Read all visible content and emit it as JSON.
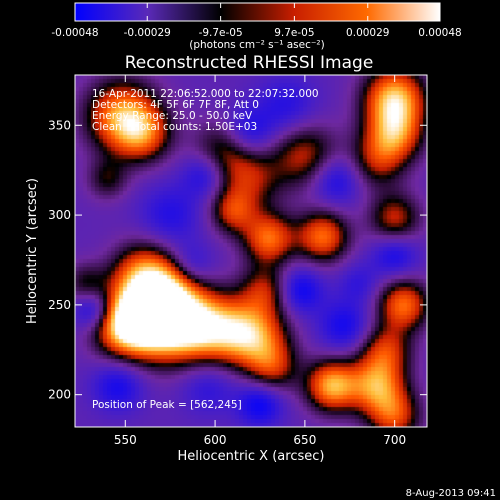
{
  "chart_data": {
    "type": "heatmap",
    "title": "Reconstructed RHESSI Image",
    "xlabel": "Heliocentric X (arcsec)",
    "ylabel": "Heliocentric Y (arcsec)",
    "xlim": [
      522,
      718
    ],
    "ylim": [
      182,
      378
    ],
    "x_ticks": [
      550,
      600,
      650,
      700
    ],
    "y_ticks": [
      200,
      250,
      300,
      350
    ],
    "colorbar": {
      "range": [
        -0.00048,
        0.00048
      ],
      "tick_values": [
        -0.00048,
        -0.00029,
        -9.7e-05,
        9.7e-05,
        0.00029,
        0.00048
      ],
      "tick_labels": [
        "-0.00048",
        "-0.00029",
        "-9.7e-05",
        "9.7e-05",
        "0.00029",
        "0.00048"
      ],
      "unit_label": "(photons cm⁻² s⁻¹ asec⁻²)",
      "colors": [
        "#0000ff",
        "#5a2ab8",
        "#000000",
        "#c81e00",
        "#ff6a00",
        "#ffffff"
      ]
    },
    "annotations": [
      "16-Apr-2011 22:06:52.000 to 22:07:32.000",
      "Detectors: 4F 5F 6F 7F 8F, Att 0",
      "Energy Range: 25.0 - 50.0 keV",
      "Clean    Total counts: 1.50E+03"
    ],
    "peak_label": "Position of Peak = [562,245]",
    "peak": [
      562,
      245
    ],
    "blobs": [
      {
        "x": 562,
        "y": 245,
        "v": 1.0,
        "s": 14
      },
      {
        "x": 575,
        "y": 242,
        "v": 0.85,
        "s": 16
      },
      {
        "x": 548,
        "y": 238,
        "v": 0.7,
        "s": 12
      },
      {
        "x": 560,
        "y": 268,
        "v": 0.65,
        "s": 12
      },
      {
        "x": 610,
        "y": 235,
        "v": 0.7,
        "s": 13
      },
      {
        "x": 625,
        "y": 232,
        "v": 0.55,
        "s": 12
      },
      {
        "x": 590,
        "y": 238,
        "v": 0.6,
        "s": 13
      },
      {
        "x": 548,
        "y": 355,
        "v": 0.85,
        "s": 14
      },
      {
        "x": 560,
        "y": 345,
        "v": 0.55,
        "s": 11
      },
      {
        "x": 605,
        "y": 335,
        "v": 0.5,
        "s": 12
      },
      {
        "x": 620,
        "y": 320,
        "v": 0.45,
        "s": 12
      },
      {
        "x": 650,
        "y": 333,
        "v": 0.55,
        "s": 13
      },
      {
        "x": 700,
        "y": 365,
        "v": 0.95,
        "s": 12
      },
      {
        "x": 700,
        "y": 345,
        "v": 0.7,
        "s": 11
      },
      {
        "x": 690,
        "y": 330,
        "v": 0.45,
        "s": 11
      },
      {
        "x": 660,
        "y": 288,
        "v": 0.75,
        "s": 10
      },
      {
        "x": 630,
        "y": 287,
        "v": 0.75,
        "s": 10
      },
      {
        "x": 610,
        "y": 302,
        "v": 0.55,
        "s": 9
      },
      {
        "x": 700,
        "y": 298,
        "v": 0.55,
        "s": 10
      },
      {
        "x": 628,
        "y": 258,
        "v": 0.5,
        "s": 10
      },
      {
        "x": 632,
        "y": 215,
        "v": 0.5,
        "s": 10
      },
      {
        "x": 665,
        "y": 205,
        "v": 0.9,
        "s": 10
      },
      {
        "x": 690,
        "y": 205,
        "v": 0.8,
        "s": 11
      },
      {
        "x": 695,
        "y": 225,
        "v": 0.55,
        "s": 10
      },
      {
        "x": 705,
        "y": 250,
        "v": 0.75,
        "s": 10
      },
      {
        "x": 700,
        "y": 188,
        "v": 0.6,
        "s": 10
      },
      {
        "x": 528,
        "y": 262,
        "v": 0.35,
        "s": 8
      },
      {
        "x": 540,
        "y": 320,
        "v": 0.35,
        "s": 8
      },
      {
        "x": 580,
        "y": 265,
        "v": 0.5,
        "s": 10
      }
    ],
    "dips": [
      {
        "x": 585,
        "y": 270,
        "v": 0.75,
        "s": 9
      },
      {
        "x": 533,
        "y": 247,
        "v": 0.7,
        "s": 8
      },
      {
        "x": 595,
        "y": 323,
        "v": 0.55,
        "s": 9
      },
      {
        "x": 618,
        "y": 345,
        "v": 0.55,
        "s": 10
      },
      {
        "x": 667,
        "y": 320,
        "v": 0.55,
        "s": 10
      },
      {
        "x": 700,
        "y": 278,
        "v": 0.5,
        "s": 9
      },
      {
        "x": 647,
        "y": 258,
        "v": 0.6,
        "s": 9
      },
      {
        "x": 625,
        "y": 195,
        "v": 0.6,
        "s": 9
      },
      {
        "x": 546,
        "y": 205,
        "v": 0.5,
        "s": 10
      },
      {
        "x": 640,
        "y": 360,
        "v": 0.4,
        "s": 12
      },
      {
        "x": 575,
        "y": 300,
        "v": 0.4,
        "s": 12
      },
      {
        "x": 672,
        "y": 238,
        "v": 0.5,
        "s": 10
      },
      {
        "x": 596,
        "y": 205,
        "v": 0.35,
        "s": 11
      },
      {
        "x": 680,
        "y": 262,
        "v": 0.3,
        "s": 8
      }
    ]
  },
  "footer": {
    "date": "8-Aug-2013 09:41"
  }
}
